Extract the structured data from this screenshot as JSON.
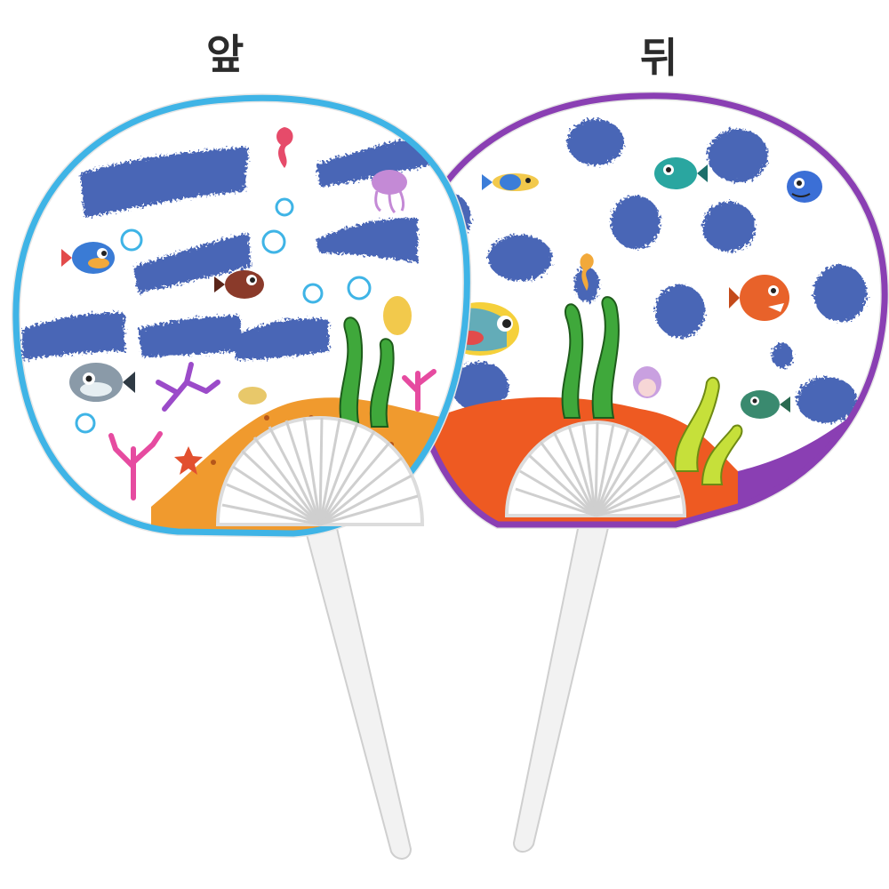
{
  "labels": {
    "front": "앞",
    "back": "뒤"
  },
  "colors": {
    "front_rim": "#3fb4e6",
    "back_rim": "#8a3fb3",
    "feather_blue": "#4a66b6",
    "sand_front": "#f09a2e",
    "sand_back": "#ee5a22",
    "seaweed": "#3fa83b",
    "seaweed_light": "#a8d62f",
    "coral_pink": "#e64ba0",
    "coral_purple": "#9b4bc9",
    "handle": "#f4f4f4"
  }
}
